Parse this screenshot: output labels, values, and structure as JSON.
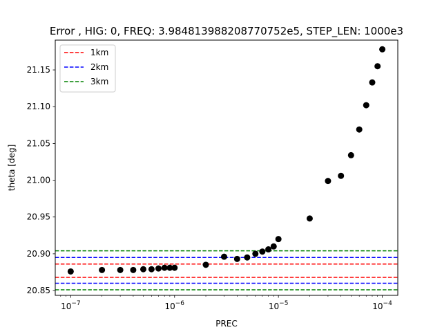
{
  "chart_data": {
    "type": "scatter",
    "title": "Error , HIG: 0, FREQ: 3.984813988208770752e5, STEP_LEN: 1000e3",
    "xlabel": "PREC",
    "ylabel": "theta [deg]",
    "xscale": "log",
    "xlim": [
      7.1e-08,
      0.000141
    ],
    "ylim": [
      20.8435,
      21.1905
    ],
    "x_ticks": [
      {
        "value": 1e-07,
        "base": "10",
        "exp": "−7"
      },
      {
        "value": 1e-06,
        "base": "10",
        "exp": "−6"
      },
      {
        "value": 1e-05,
        "base": "10",
        "exp": "−5"
      },
      {
        "value": 0.0001,
        "base": "10",
        "exp": "−4"
      }
    ],
    "y_ticks": [
      {
        "value": 20.85,
        "label": "20.85"
      },
      {
        "value": 20.9,
        "label": "20.90"
      },
      {
        "value": 20.95,
        "label": "20.95"
      },
      {
        "value": 21.0,
        "label": "21.00"
      },
      {
        "value": 21.05,
        "label": "21.05"
      },
      {
        "value": 21.1,
        "label": "21.10"
      },
      {
        "value": 21.15,
        "label": "21.15"
      }
    ],
    "grid": false,
    "legend_position": "top-left",
    "points": {
      "color": "#000000",
      "x": [
        1e-07,
        2e-07,
        3e-07,
        4e-07,
        5e-07,
        6e-07,
        7e-07,
        8e-07,
        9e-07,
        1e-06,
        2e-06,
        3e-06,
        4e-06,
        5e-06,
        6e-06,
        7e-06,
        8e-06,
        9e-06,
        1e-05,
        2e-05,
        3e-05,
        4e-05,
        5e-05,
        6e-05,
        7e-05,
        8e-05,
        9e-05,
        0.0001
      ],
      "y": [
        20.876,
        20.878,
        20.878,
        20.878,
        20.879,
        20.879,
        20.88,
        20.881,
        20.881,
        20.881,
        20.885,
        20.896,
        20.893,
        20.895,
        20.9,
        20.903,
        20.906,
        20.91,
        20.92,
        20.948,
        20.999,
        21.006,
        21.034,
        21.069,
        21.102,
        21.133,
        21.155,
        21.178
      ]
    },
    "series": [
      {
        "name": "1km",
        "color": "#ff0000",
        "lines": [
          20.886,
          20.868
        ]
      },
      {
        "name": "2km",
        "color": "#0000ff",
        "lines": [
          20.895,
          20.86
        ]
      },
      {
        "name": "3km",
        "color": "#008000",
        "lines": [
          20.904,
          20.851
        ]
      }
    ]
  }
}
